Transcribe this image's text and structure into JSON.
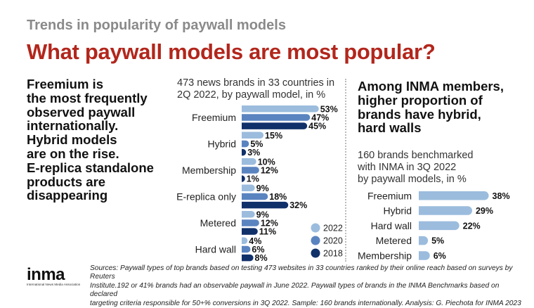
{
  "header": {
    "kicker": "Trends in popularity of paywall models",
    "headline": "What paywall models are most popular?"
  },
  "lead_lines": [
    "Freemium is",
    "the most frequently",
    "observed paywall",
    "internationally.",
    "Hybrid models",
    "are on the rise.",
    "E-replica standalone",
    "products are",
    "disappearing"
  ],
  "colors": {
    "s2022": "#9bbcdd",
    "s2020": "#5a84c0",
    "s2018": "#10306a",
    "headline": "#b2261c"
  },
  "chart_data": [
    {
      "type": "bar",
      "orientation": "horizontal",
      "subtitle_lines": [
        "473 news brands in 33 countries in",
        "2Q 2022, by paywall model, in %"
      ],
      "categories": [
        "Freemium",
        "Hybrid",
        "Membership",
        "E-replica only",
        "Metered",
        "Hard wall"
      ],
      "series": [
        {
          "name": "2022",
          "values": [
            53,
            15,
            10,
            9,
            9,
            4
          ],
          "labels": [
            "53%",
            "15%",
            "10%",
            "9%",
            "9%",
            "4%"
          ]
        },
        {
          "name": "2020",
          "values": [
            47,
            5,
            12,
            18,
            12,
            6
          ],
          "labels": [
            "47%",
            "5%",
            "12%",
            "18%",
            "12%",
            "6%"
          ]
        },
        {
          "name": "2018",
          "values": [
            45,
            3,
            1,
            32,
            11,
            8
          ],
          "labels": [
            "45%",
            "3%",
            "1%",
            "32%",
            "11%",
            "8%"
          ]
        }
      ],
      "legend": "bottom-right"
    },
    {
      "type": "bar",
      "orientation": "horizontal",
      "title_lines": [
        "Among INMA members,",
        "higher proportion of",
        "brands have hybrid,",
        "hard walls"
      ],
      "subtitle_lines": [
        "160 brands benchmarked",
        "with INMA in 3Q 2022",
        "by paywall models, in %"
      ],
      "categories": [
        "Freemium",
        "Hybrid",
        "Hard wall",
        "Metered",
        "Membership"
      ],
      "values": [
        38,
        29,
        22,
        5,
        6
      ],
      "labels": [
        "38%",
        "29%",
        "22%",
        "5%",
        "6%"
      ]
    }
  ],
  "footer": {
    "logo_text": "inma",
    "logo_subtext": "International News Media Association",
    "sources_lines": [
      "Sources: Paywall types of top brands based on testing 473 websites in 33 countries ranked by their online reach based on surveys by Reuters",
      "Institute.192 or 41% brands had an observable paywall in June 2022. Paywall types of brands in the INMA Benchmarks based on declared",
      "targeting criteria responsible for 50+% conversions in 3Q 2022. Sample: 160 brands internationally. Analysis: G. Piechota for INMA 2023"
    ]
  }
}
